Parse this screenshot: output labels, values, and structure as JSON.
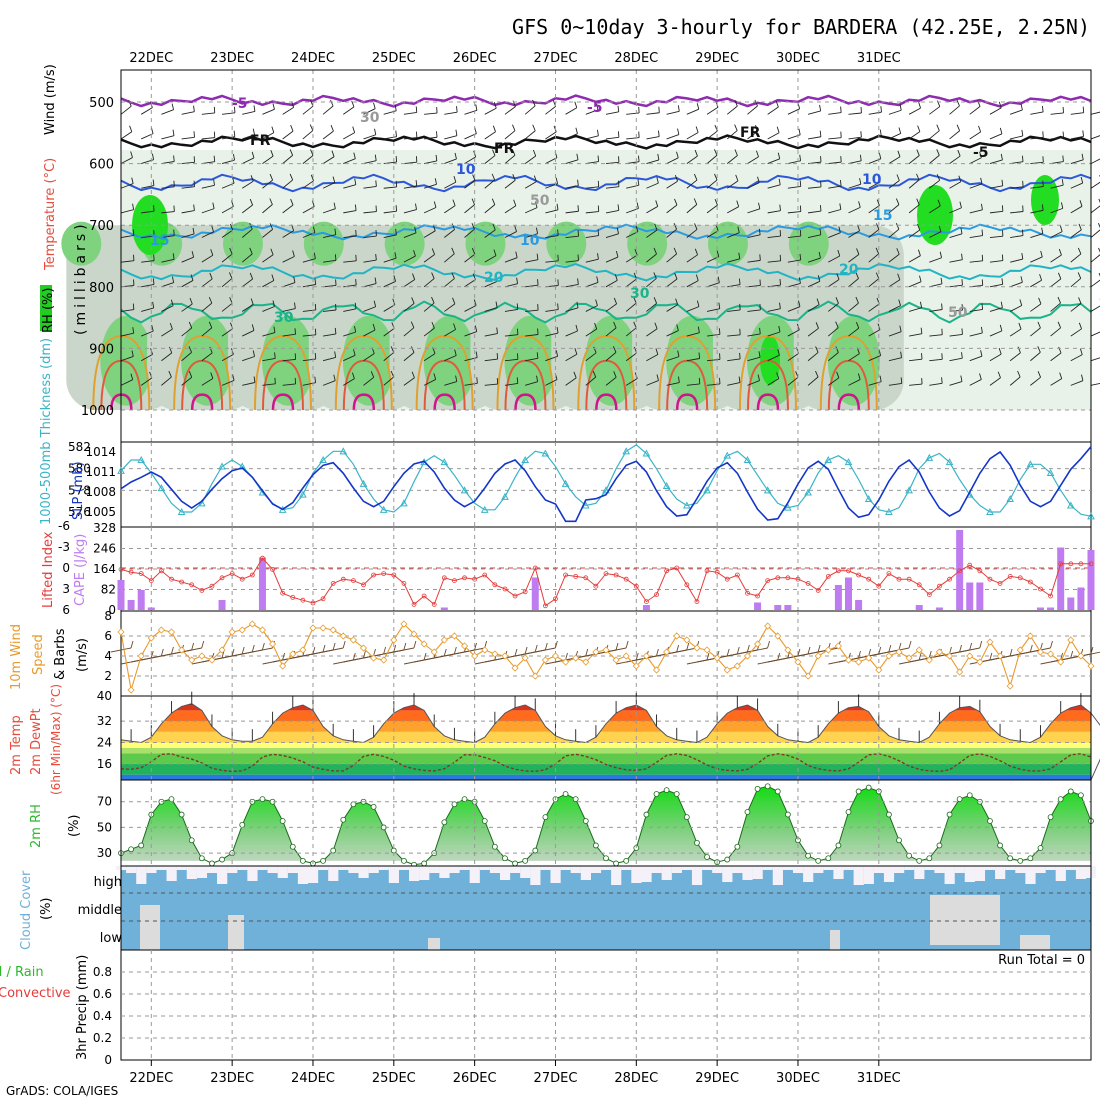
{
  "chart_data": {
    "type": "meteogram",
    "title": "GFS 0~10day 3-hourly for BARDERA (42.25E, 2.25N)",
    "credit": "GrADS: COLA/IGES",
    "dates": [
      "22DEC",
      "23DEC",
      "24DEC",
      "25DEC",
      "26DEC",
      "27DEC",
      "28DEC",
      "29DEC",
      "30DEC",
      "31DEC"
    ],
    "colors": {
      "rh_green": "#22cc22",
      "temp_red": "#e74c3c",
      "thick": "#3bb4c8",
      "slp": "#1436c8",
      "cape": "#bf7cf0",
      "li": "#e53b3b",
      "wind_speed": "#e89a2c",
      "barb": "#6b4a2b",
      "cloud": "#6fb1d8",
      "cloud_clear": "#f4f2f8",
      "rh2m": "#2db82d"
    },
    "upper_air": {
      "y_label_rh": "RH (%)",
      "y_label_temp": "Temperature (°C)",
      "y_label_wind": "Wind (m/s)",
      "y_label_axis": "(millibars)",
      "levels": [
        500,
        600,
        700,
        800,
        900,
        1000
      ],
      "isotherm_labels": [
        "-5",
        "FR",
        "FR",
        "FR",
        "-5",
        "-5",
        "10",
        "10",
        "10",
        "15",
        "15",
        "20",
        "20",
        "30",
        "30",
        "30",
        "50",
        "50"
      ]
    },
    "slp_thickness": {
      "y_label_thick": "1000-500mb Thickness (dm)",
      "y_label_slp": "SLP (mb)",
      "thickness_ticks": [
        576,
        578,
        580,
        582
      ],
      "slp_ticks": [
        1005,
        1008,
        1011,
        1014
      ],
      "thickness": [
        579.8,
        580.8,
        580.8,
        579.6,
        578.2,
        576.8,
        576.0,
        576.0,
        576.8,
        578.6,
        580.2,
        580.8,
        580.2,
        579.2,
        577.8,
        576.8,
        576.2,
        576.4,
        577.6,
        579.6,
        580.8,
        581.6,
        581.6,
        580.4,
        578.6,
        577.2,
        576.2,
        576.0,
        576.8,
        578.8,
        580.6,
        581.2,
        580.6,
        579.4,
        578.0,
        576.8,
        576.2,
        576.2,
        577.4,
        579.2,
        580.8,
        581.6,
        581.4,
        580.2,
        578.6,
        577.4,
        576.6,
        576.8,
        578.0,
        580.0,
        581.6,
        582.2,
        581.4,
        580.0,
        578.4,
        577.2,
        576.6,
        576.8,
        578.0,
        579.8,
        581.2,
        581.6,
        580.8,
        579.4,
        578.0,
        576.8,
        576.4,
        576.6,
        577.8,
        579.6,
        580.8,
        581.2,
        580.6,
        579.0,
        577.2,
        576.2,
        576.0,
        576.4,
        578.0,
        580.0,
        581.0,
        581.4,
        580.6,
        579.0,
        577.6,
        576.6,
        576.0,
        576.0,
        577.2,
        579.0,
        580.4,
        580.4,
        579.6,
        578.0,
        576.6,
        575.8,
        575.6
      ],
      "slp": [
        1008.5,
        1009.5,
        1010.2,
        1011.0,
        1010.2,
        1008.4,
        1006.6,
        1005.6,
        1006.6,
        1008.4,
        1010.0,
        1011.2,
        1011.6,
        1010.2,
        1008.2,
        1006.2,
        1005.4,
        1006.4,
        1008.6,
        1010.6,
        1012.0,
        1012.4,
        1010.8,
        1008.6,
        1006.6,
        1005.8,
        1006.6,
        1008.8,
        1010.8,
        1012.2,
        1012.6,
        1011.0,
        1008.6,
        1006.8,
        1005.8,
        1006.6,
        1008.6,
        1010.8,
        1012.2,
        1012.8,
        1011.2,
        1008.8,
        1006.8,
        1006.2,
        1003.6,
        1003.6,
        1006.8,
        1007.0,
        1007.6,
        1010.0,
        1012.0,
        1012.6,
        1011.0,
        1008.2,
        1005.8,
        1004.4,
        1004.6,
        1007.0,
        1009.6,
        1011.6,
        1012.4,
        1010.8,
        1008.0,
        1005.4,
        1003.8,
        1004.0,
        1006.4,
        1009.2,
        1011.6,
        1012.6,
        1011.4,
        1008.4,
        1005.6,
        1004.2,
        1004.6,
        1006.8,
        1009.6,
        1011.8,
        1012.8,
        1011.0,
        1008.0,
        1005.6,
        1004.4,
        1005.2,
        1008.0,
        1010.8,
        1013.0,
        1014.0,
        1012.0,
        1009.0,
        1006.6,
        1005.8,
        1006.6,
        1009.0,
        1011.4,
        1013.0,
        1014.8
      ]
    },
    "cape_li": {
      "y_label_li": "Lifted Index",
      "y_label_cape": "CAPE (J/kg)",
      "li_ticks": [
        "-6",
        "-3",
        "0",
        "3",
        "6"
      ],
      "cape_ticks": [
        "0",
        "82",
        "164",
        "246",
        "328"
      ],
      "cape": [
        120,
        40,
        80,
        10,
        0,
        0,
        0,
        0,
        0,
        0,
        40,
        0,
        0,
        0,
        210,
        0,
        0,
        0,
        0,
        0,
        0,
        0,
        0,
        0,
        0,
        0,
        0,
        0,
        0,
        0,
        0,
        0,
        10,
        0,
        0,
        0,
        0,
        0,
        0,
        0,
        0,
        130,
        0,
        0,
        0,
        0,
        0,
        0,
        0,
        0,
        0,
        0,
        20,
        0,
        0,
        0,
        0,
        0,
        0,
        0,
        0,
        0,
        0,
        30,
        0,
        20,
        20,
        0,
        0,
        0,
        0,
        100,
        130,
        40,
        0,
        0,
        0,
        0,
        0,
        20,
        0,
        10,
        0,
        320,
        110,
        110,
        0,
        0,
        0,
        0,
        0,
        10,
        10,
        250,
        50,
        90,
        240
      ],
      "li": [
        0.2,
        0.6,
        0.8,
        1.8,
        0.4,
        1.6,
        2.0,
        2.4,
        3.2,
        2.6,
        1.4,
        0.8,
        1.6,
        1.0,
        -1.4,
        0.2,
        3.6,
        4.2,
        4.6,
        5.0,
        4.4,
        2.2,
        1.6,
        1.8,
        2.4,
        1.0,
        0.8,
        1.0,
        2.2,
        5.2,
        4.0,
        5.2,
        1.4,
        1.8,
        1.4,
        1.6,
        1.0,
        2.4,
        3.0,
        4.0,
        3.4,
        0.0,
        5.4,
        4.4,
        1.0,
        1.2,
        1.4,
        2.6,
        0.8,
        1.0,
        1.6,
        2.6,
        4.8,
        3.8,
        0.4,
        0.0,
        2.4,
        4.8,
        0.4,
        0.6,
        1.6,
        1.0,
        3.6,
        4.0,
        1.8,
        1.4,
        1.4,
        1.6,
        2.2,
        3.2,
        1.2,
        0.4,
        0.4,
        1.0,
        1.6,
        2.6,
        0.8,
        1.6,
        1.6,
        2.4,
        3.8,
        2.6,
        1.6,
        0.4,
        -0.4,
        0.4,
        1.6,
        2.2,
        1.2,
        1.4,
        2.0,
        3.0,
        4.0,
        -0.6,
        -0.6,
        -0.6,
        -0.6
      ]
    },
    "wind10m": {
      "y_label_1": "10m Wind",
      "y_label_2": "Speed",
      "y_label_3": "& Barbs",
      "y_label_4": "(m/s)",
      "ticks": [
        "2",
        "4",
        "6",
        "8"
      ],
      "speed": [
        6.4,
        0.6,
        4.0,
        5.8,
        6.6,
        6.4,
        4.6,
        3.6,
        4.0,
        3.6,
        4.6,
        6.4,
        6.6,
        7.2,
        6.6,
        5.2,
        3.0,
        4.2,
        4.6,
        6.8,
        6.8,
        6.6,
        6.0,
        5.6,
        4.8,
        3.8,
        3.6,
        5.6,
        7.2,
        6.2,
        5.2,
        4.4,
        5.6,
        6.0,
        5.0,
        4.0,
        4.6,
        4.2,
        4.0,
        2.8,
        3.8,
        2.0,
        3.6,
        4.0,
        3.4,
        3.8,
        3.4,
        4.4,
        4.6,
        3.6,
        4.0,
        3.0,
        4.0,
        2.6,
        4.4,
        6.0,
        5.6,
        4.8,
        4.6,
        3.8,
        2.6,
        3.0,
        4.0,
        5.2,
        7.0,
        6.0,
        4.6,
        3.4,
        2.0,
        4.0,
        4.6,
        5.0,
        3.6,
        3.4,
        3.8,
        2.6,
        4.0,
        4.4,
        3.8,
        4.6,
        3.6,
        4.4,
        4.0,
        2.4,
        4.0,
        3.4,
        5.4,
        4.0,
        1.0,
        4.6,
        6.0,
        4.4,
        4.2,
        3.4,
        5.6,
        4.0,
        3.0
      ]
    },
    "temp2m": {
      "y_label_1": "2m Temp",
      "y_label_2": "2m DewPt",
      "y_label_3": "(6hr Min/Max) (°C)",
      "ticks": [
        "16",
        "24",
        "32",
        "40"
      ],
      "temp": [
        25,
        24.5,
        24,
        26,
        31,
        35,
        37.5,
        38.5,
        36,
        30,
        26.5,
        25,
        24.5,
        24.5,
        26,
        31,
        35,
        37,
        38,
        36,
        30,
        26.5,
        25,
        24.5,
        24,
        26,
        31,
        35,
        37,
        38,
        36,
        30,
        26.5,
        25,
        24.5,
        24,
        26,
        31,
        35,
        37,
        38,
        36,
        30,
        26.5,
        25,
        24.5,
        24,
        26,
        31,
        35,
        37,
        38,
        36,
        30,
        26.5,
        25,
        24.5,
        24,
        26,
        31,
        35,
        37,
        38,
        36,
        30,
        26.5,
        25,
        24.5,
        24,
        26,
        31,
        35,
        37,
        37.5,
        35.5,
        30,
        26.5,
        25,
        24.5,
        24,
        26,
        31,
        35,
        37,
        37.5,
        35.5,
        30,
        26.5,
        25,
        24.5,
        24,
        26,
        31,
        35,
        37,
        38,
        35,
        30,
        27
      ],
      "dewpt": [
        14.2,
        14.0,
        14.6,
        16.8,
        19.6,
        19.8,
        18.6,
        17.8,
        16.4,
        14.4,
        13.6,
        13.2,
        13.4,
        15.2,
        18.6,
        19.6,
        19.2,
        18.2,
        16.8,
        14.8,
        14.0,
        13.4,
        13.4,
        15.4,
        18.8,
        19.6,
        18.8,
        17.4,
        15.2,
        14.2,
        13.6,
        13.4,
        14.2,
        16.6,
        19.4,
        19.4,
        18.4,
        17.2,
        15.2,
        14.0,
        13.4,
        13.2,
        13.8,
        16.0,
        19.0,
        19.6,
        18.8,
        17.6,
        15.8,
        14.6,
        13.8,
        13.6,
        14.2,
        16.6,
        19.2,
        19.8,
        19.2,
        17.6,
        15.6,
        14.2,
        13.6,
        13.4,
        14.0,
        16.2,
        19.0,
        19.8,
        19.2,
        17.8,
        15.4,
        14.2,
        13.6,
        13.4,
        14.2,
        16.6,
        19.4,
        19.8,
        18.8,
        17.2,
        15.2,
        14.0,
        13.4,
        13.2,
        13.8,
        16.4,
        19.2,
        19.8,
        18.8,
        17.2,
        15.2,
        14.0,
        13.4,
        13.4,
        14.2,
        16.8,
        19.4,
        19.8,
        18.6
      ]
    },
    "rh2m": {
      "y_label": "2m RH",
      "y_unit": "(%)",
      "ticks": [
        "30",
        "50",
        "70"
      ],
      "values": [
        30,
        33,
        36,
        60,
        70,
        72,
        60,
        40,
        26,
        22,
        25,
        30,
        52,
        70,
        72,
        70,
        55,
        35,
        24,
        22,
        24,
        32,
        56,
        68,
        70,
        66,
        50,
        32,
        24,
        21,
        22,
        30,
        54,
        68,
        72,
        70,
        55,
        35,
        26,
        22,
        24,
        32,
        58,
        72,
        76,
        72,
        55,
        36,
        26,
        22,
        24,
        34,
        60,
        76,
        79,
        76,
        58,
        38,
        27,
        23,
        25,
        35,
        62,
        80,
        82,
        78,
        60,
        40,
        28,
        24,
        26,
        36,
        62,
        78,
        81,
        78,
        60,
        40,
        28,
        24,
        26,
        36,
        60,
        72,
        75,
        70,
        55,
        36,
        26,
        24,
        26,
        34,
        58,
        72,
        78,
        75,
        55
      ]
    },
    "cloud": {
      "y_label": "Cloud Cover",
      "y_unit": "(%)",
      "level_labels": [
        "high",
        "middle",
        "low"
      ]
    },
    "precip": {
      "y_label_1": "Total / Rain",
      "y_label_2": "Convective",
      "y_label_3": "3hr Precip (mm)",
      "ticks": [
        "0",
        "0.2",
        "0.4",
        "0.6",
        "0.8"
      ],
      "run_total": "Run Total = 0",
      "values": []
    }
  }
}
